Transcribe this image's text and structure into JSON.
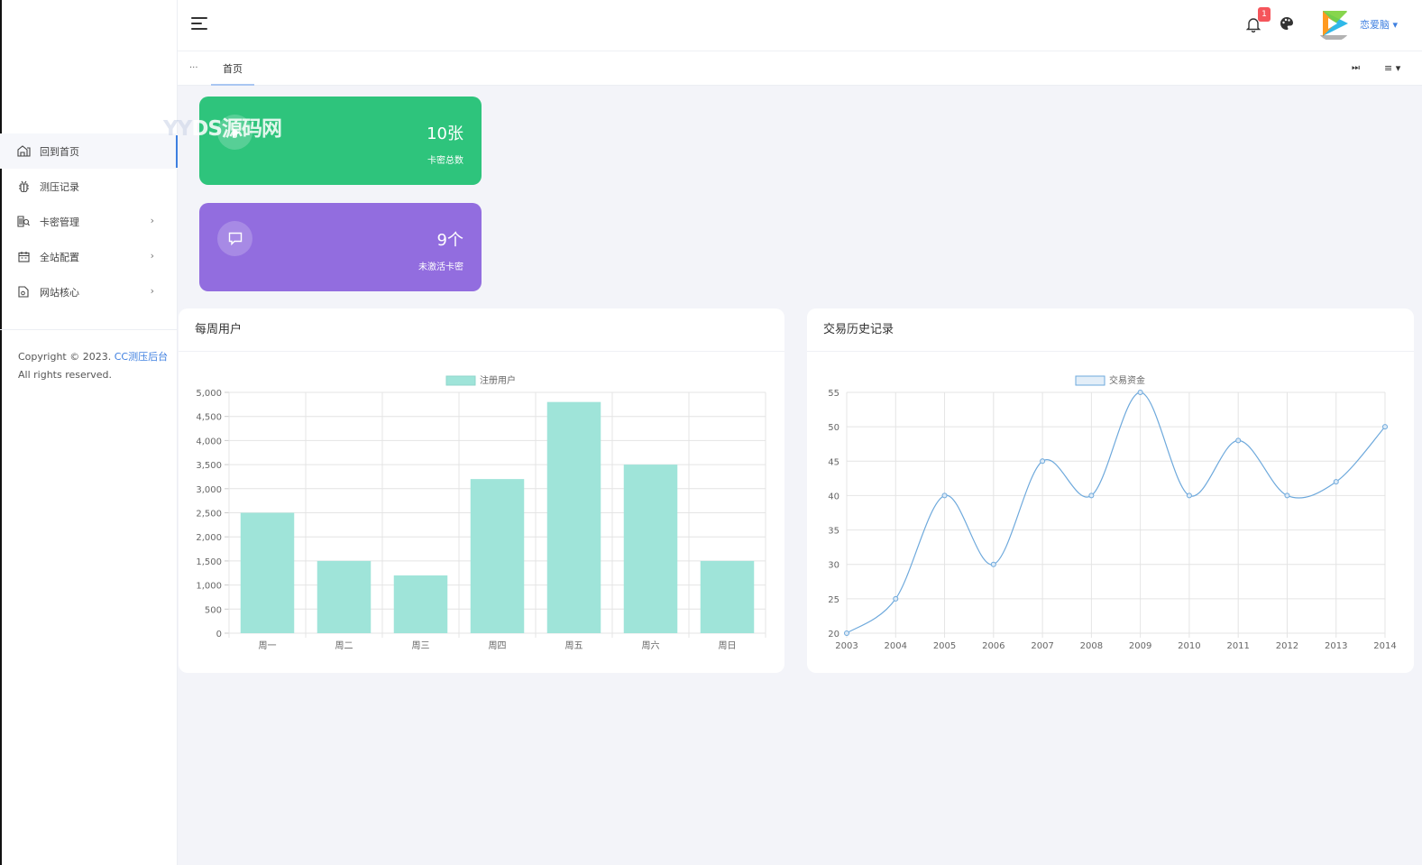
{
  "sidebar": {
    "watermark": "YYDS源码网",
    "items": [
      {
        "label": "回到首页",
        "icon": "home-icon",
        "active": true,
        "has_children": false
      },
      {
        "label": "测压记录",
        "icon": "bug-icon",
        "active": false,
        "has_children": false
      },
      {
        "label": "卡密管理",
        "icon": "search-card-icon",
        "active": false,
        "has_children": true
      },
      {
        "label": "全站配置",
        "icon": "calendar-icon",
        "active": false,
        "has_children": true
      },
      {
        "label": "网站核心",
        "icon": "document-icon",
        "active": false,
        "has_children": true
      }
    ],
    "copyright_prefix": "Copyright © 2023. ",
    "copyright_link": "CC测压后台",
    "copyright_suffix": "All rights reserved."
  },
  "header": {
    "notification_count": "1",
    "username": "恋爱脑",
    "colors": {
      "accent": "#3e7fe0",
      "badge": "#f5555b"
    }
  },
  "tabs": {
    "prev_glyph": "···",
    "items": [
      {
        "label": "首页",
        "active": true
      }
    ],
    "next_glyph": "⏭",
    "menu_glyph": "≡ ▾"
  },
  "stats": [
    {
      "value": "10张",
      "label": "卡密总数",
      "color": "#2ec47c",
      "icon": "play-icon"
    },
    {
      "value": "9个",
      "label": "未激活卡密",
      "color": "#926ddf",
      "icon": "message-icon"
    }
  ],
  "panels": {
    "weekly_title": "每周用户",
    "history_title": "交易历史记录"
  },
  "chart_data": [
    {
      "type": "bar",
      "categories": [
        "周一",
        "周二",
        "周三",
        "周四",
        "周五",
        "周六",
        "周日"
      ],
      "series": [
        {
          "name": "注册用户",
          "values": [
            2500,
            1500,
            1200,
            3200,
            4800,
            3500,
            1500
          ],
          "color": "#9fe4d9"
        }
      ],
      "ylim": [
        0,
        5000
      ],
      "yticks": [
        0,
        500,
        1000,
        1500,
        2000,
        2500,
        3000,
        3500,
        4000,
        4500,
        5000
      ],
      "ytick_labels": [
        "0",
        "500",
        "1,000",
        "1,500",
        "2,000",
        "2,500",
        "3,000",
        "3,500",
        "4,000",
        "4,500",
        "5,000"
      ],
      "legend": "top-center",
      "grid": true
    },
    {
      "type": "line",
      "x": [
        "2003",
        "2004",
        "2005",
        "2006",
        "2007",
        "2008",
        "2009",
        "2010",
        "2011",
        "2012",
        "2013",
        "2014"
      ],
      "series": [
        {
          "name": "交易资金",
          "values": [
            20,
            25,
            40,
            30,
            45,
            40,
            55,
            40,
            48,
            40,
            42,
            50
          ],
          "color": "#6ea9dc"
        }
      ],
      "ylim": [
        20,
        55
      ],
      "yticks": [
        20,
        25,
        30,
        35,
        40,
        45,
        50,
        55
      ],
      "legend": "top-center",
      "grid": true
    }
  ]
}
